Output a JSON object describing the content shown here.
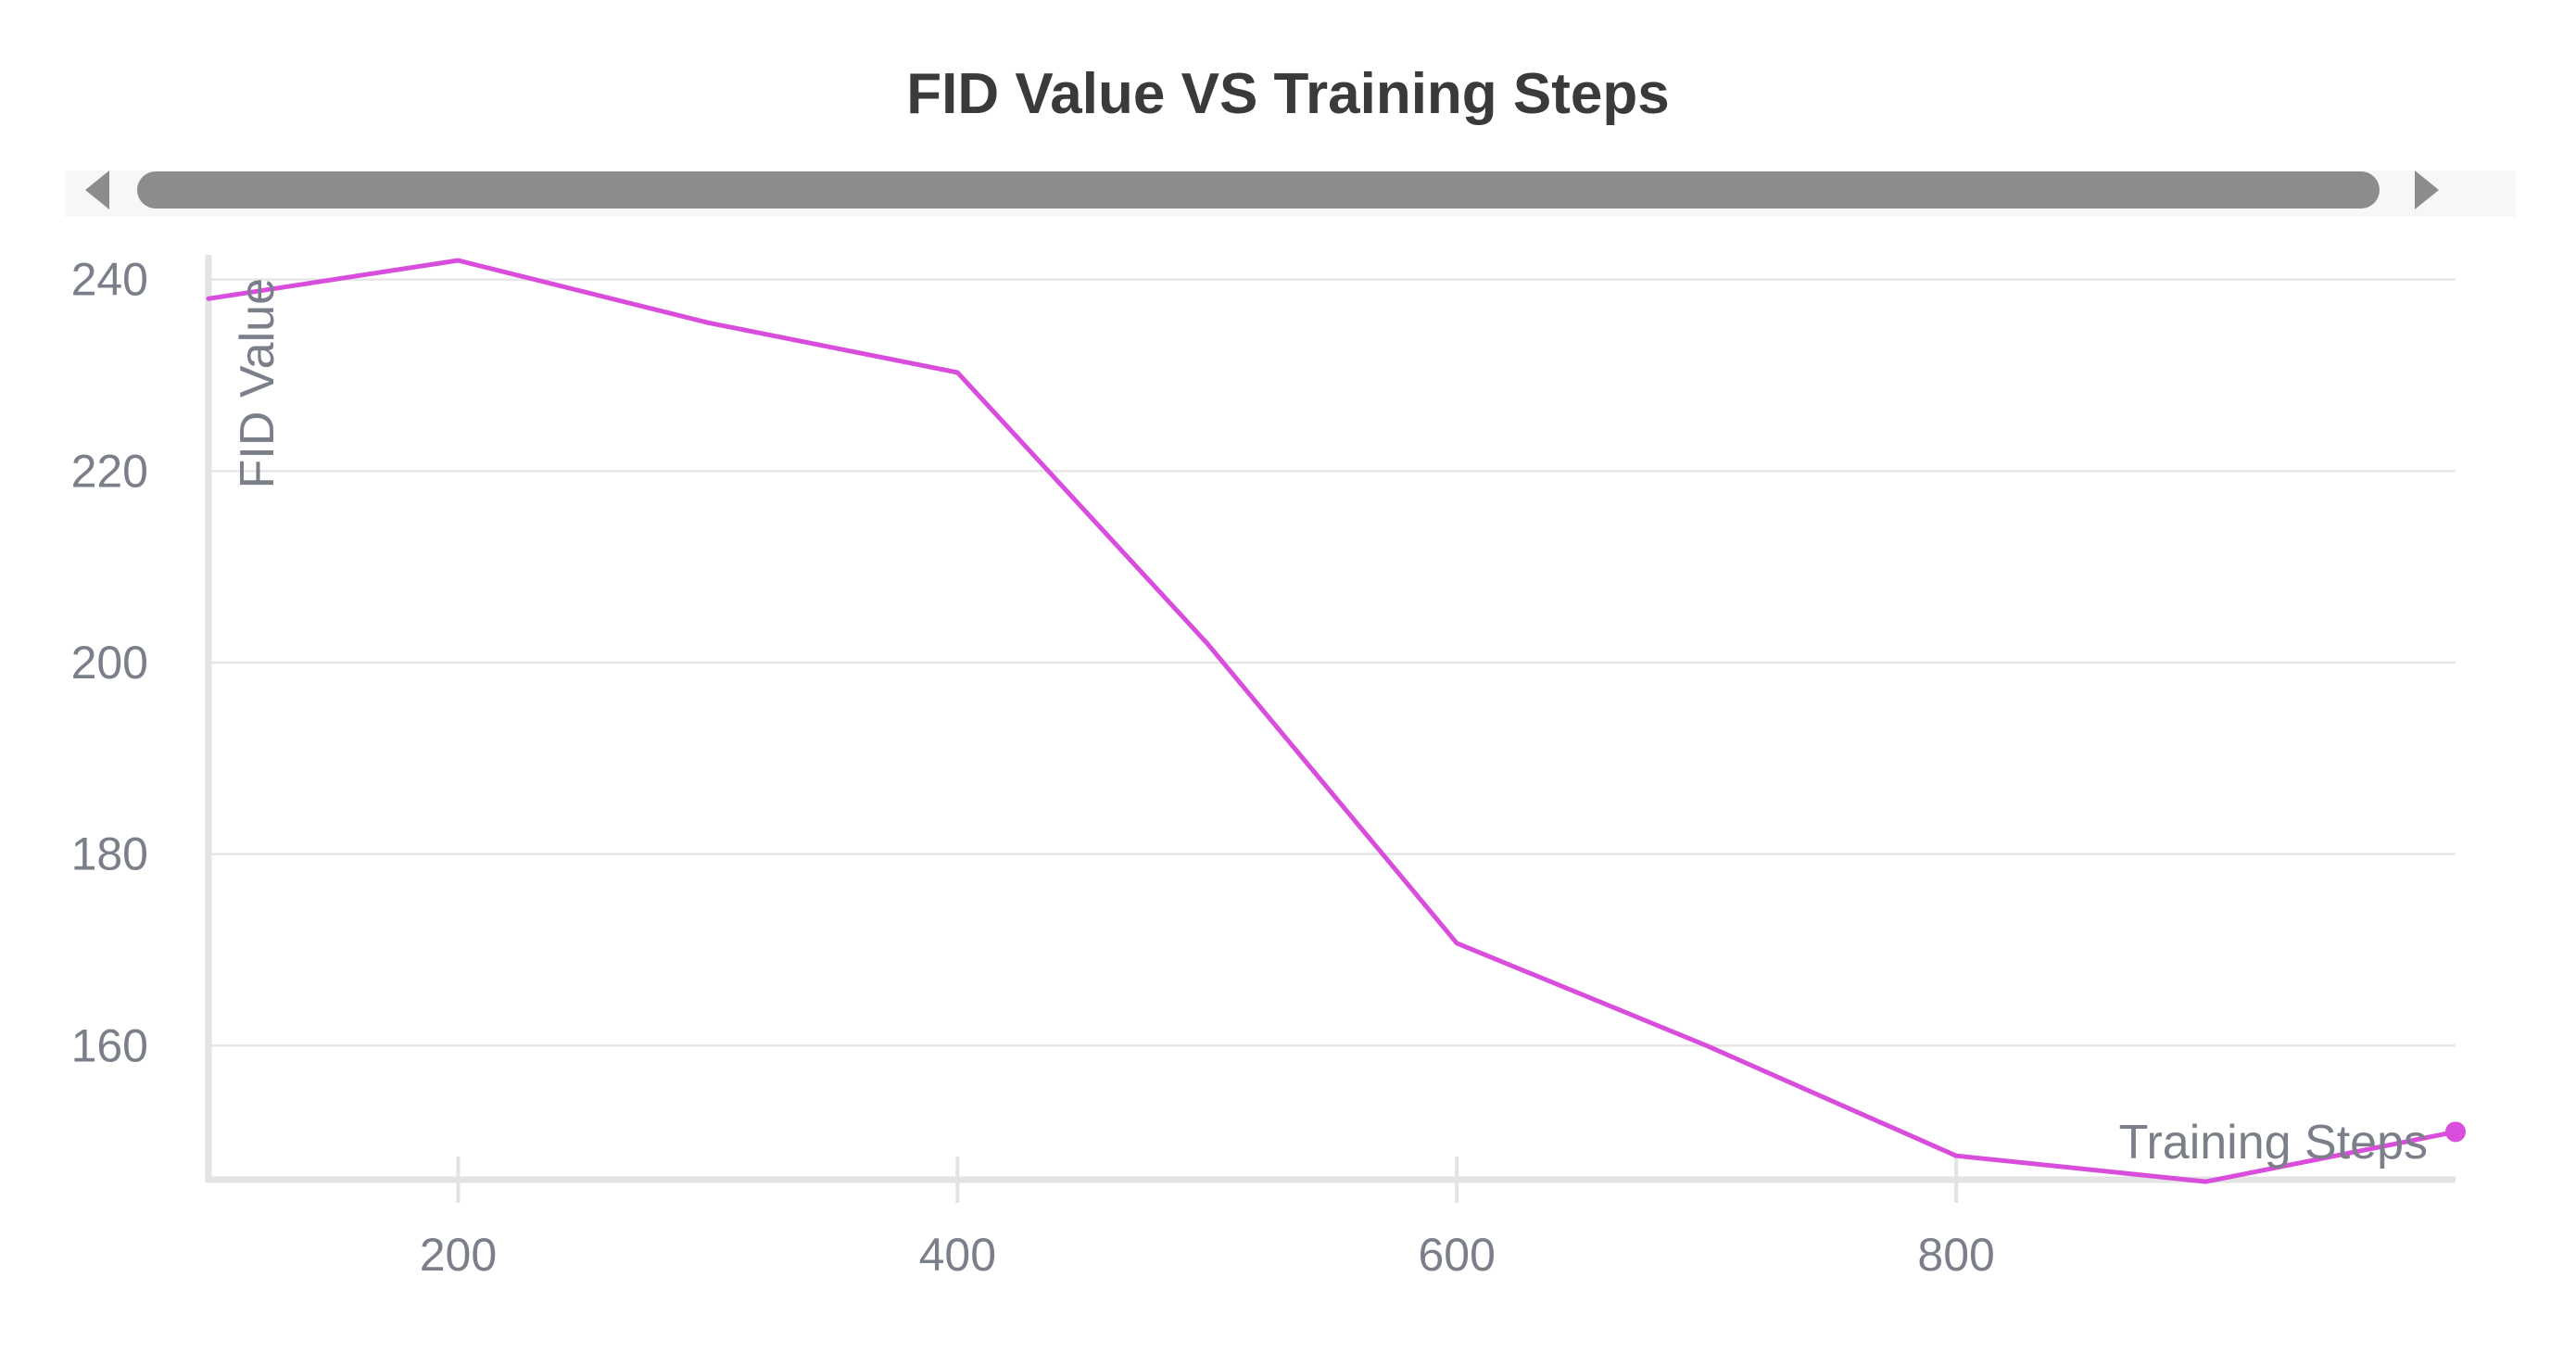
{
  "chart_data": {
    "type": "line",
    "title": "FID Value VS Training Steps",
    "xlabel": "Training Steps",
    "ylabel": "FID Value",
    "x": [
      100,
      200,
      300,
      400,
      500,
      600,
      700,
      800,
      900,
      1000
    ],
    "series": [
      {
        "values": [
          238,
          242,
          235.5,
          230.3,
          202,
          170.7,
          160,
          148.5,
          145.8,
          151
        ]
      }
    ],
    "xlim": [
      100,
      1000
    ],
    "ylim": [
      146,
      242
    ],
    "x_ticks": [
      200,
      400,
      600,
      800
    ],
    "y_ticks": [
      160,
      180,
      200,
      220,
      240
    ],
    "grid": true,
    "legend": "none",
    "data_zoom_slider": true,
    "colors": {
      "series": "#d94ddd",
      "slider_bar": "#8c8c8c",
      "slider_track": "#f7f7f7",
      "slider_arrows": "#8c8c8c"
    }
  }
}
